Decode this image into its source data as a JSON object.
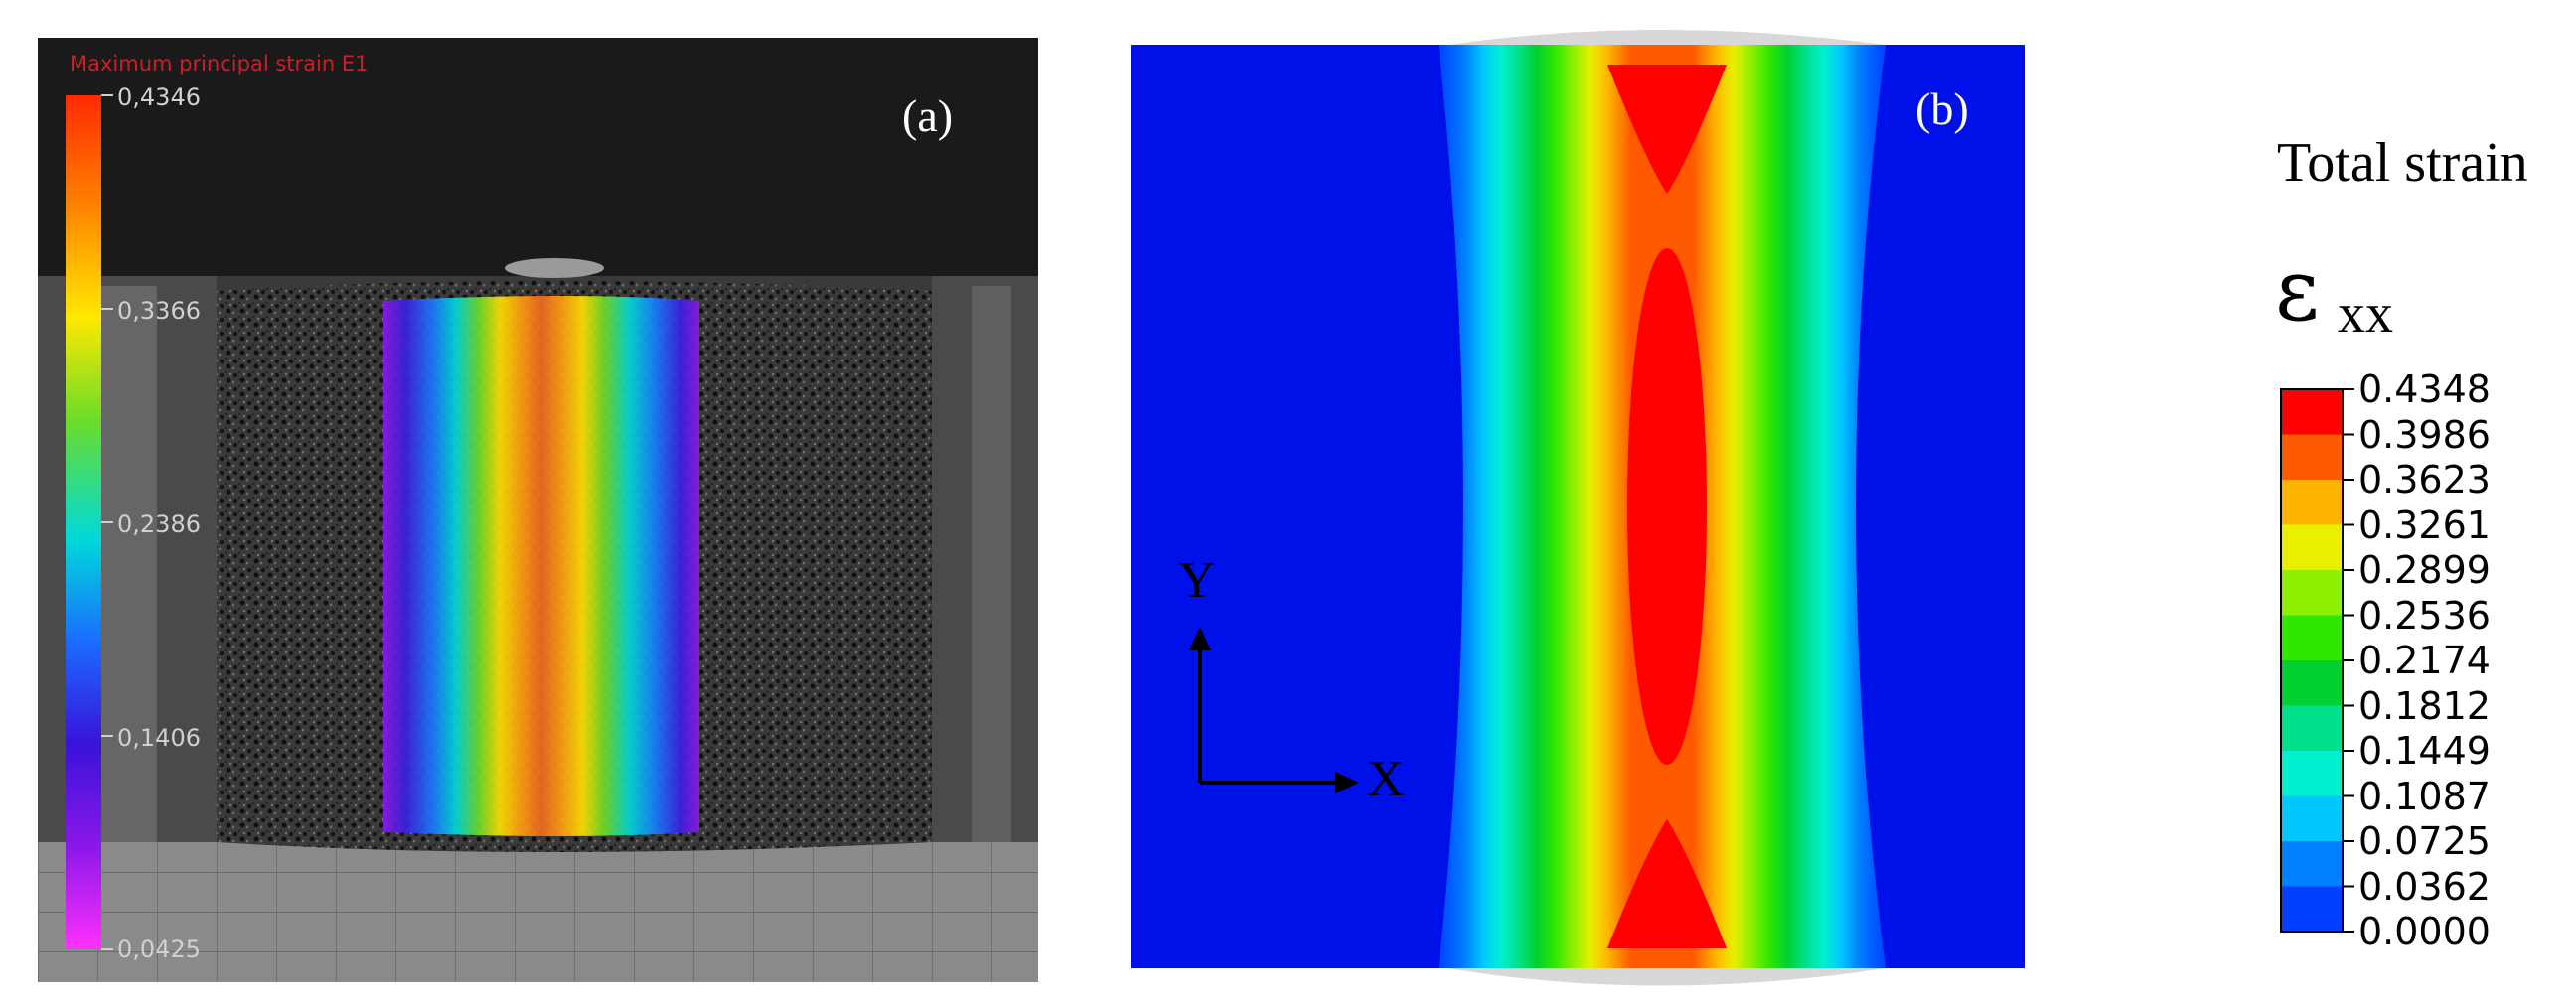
{
  "panel_a": {
    "label": "(a)",
    "colorbar_title": "Maximum principal strain E1",
    "ticks": [
      "0,4346",
      "0,3366",
      "0,2386",
      "0,1406",
      "0,0425"
    ],
    "colorbar_colors": [
      "#ff2a00",
      "#ff8a00",
      "#ffe800",
      "#6cdc2a",
      "#00d9d9",
      "#1a6cff",
      "#3a12d8",
      "#c418e8",
      "#ff30ff"
    ]
  },
  "panel_b": {
    "label": "(b)",
    "axis_x": "X",
    "axis_y": "Y",
    "legend_title": "Total strain",
    "legend_symbol": "ε",
    "legend_subscript": "xx",
    "legend_values": [
      "0.4348",
      "0.3986",
      "0.3623",
      "0.3261",
      "0.2899",
      "0.2536",
      "0.2174",
      "0.1812",
      "0.1449",
      "0.1087",
      "0.0725",
      "0.0362",
      "0.0000"
    ],
    "legend_colors": [
      "#ff0000",
      "#ff5a00",
      "#ffb400",
      "#e8f000",
      "#8cf000",
      "#2fe800",
      "#00d030",
      "#00e08a",
      "#00f0d0",
      "#00c8ff",
      "#0080ff",
      "#0040ff",
      "#0010f0"
    ]
  }
}
